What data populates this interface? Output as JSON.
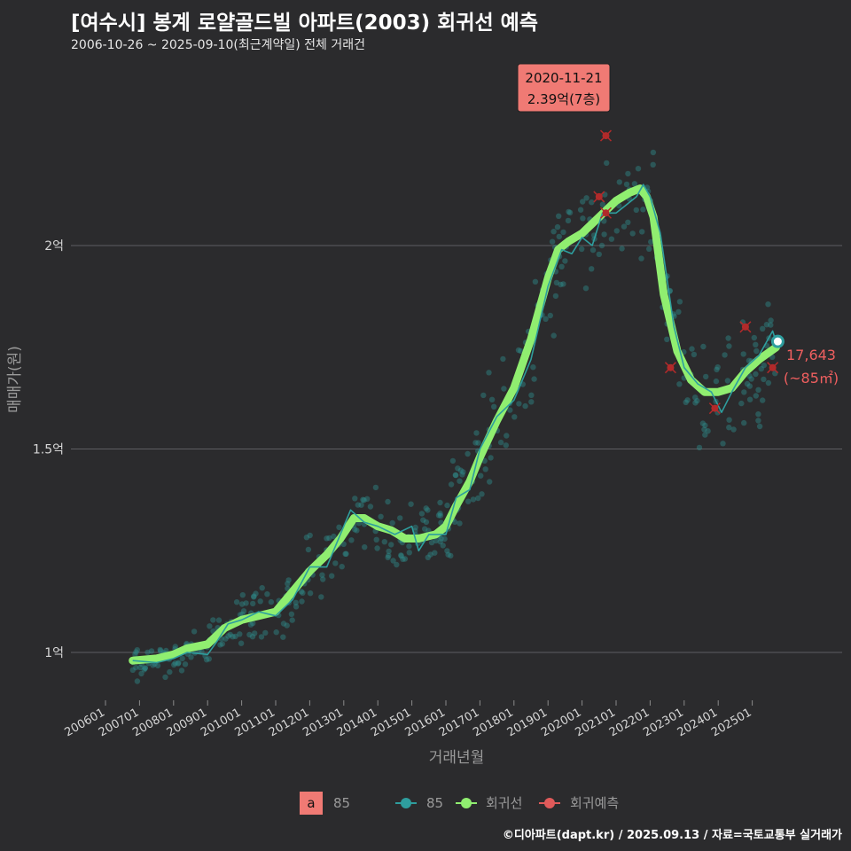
{
  "title": "[여수시] 봉계 로얄골드빌 아파트(2003) 회귀선 예측",
  "subtitle": "2006-10-26 ~ 2025-09-10(최근계약일) 전체 거래건",
  "footer": "©디아파트(dapt.kr) / 2025.09.13 / 자료=국토교통부 실거래가",
  "colors": {
    "background": "#2b2b2d",
    "scatter": "#2e8b8b",
    "trend": "#2e9e9e",
    "regression": "#90ee70",
    "predict": "#e05a5a",
    "callout_bg": "#f07a74",
    "label_red": "#f05f5f"
  },
  "chart_data": {
    "type": "scatter",
    "xlabel": "거래년월",
    "ylabel": "매매가(원)",
    "y_unit": "억",
    "ylim": [
      0.88,
      2.45
    ],
    "y_ticks": [
      {
        "value": 1.0,
        "label": "1억"
      },
      {
        "value": 1.5,
        "label": "1.5억"
      },
      {
        "value": 2.0,
        "label": "2억"
      }
    ],
    "x_range": [
      2006.0,
      2026.0
    ],
    "x_ticks": [
      "200601",
      "200701",
      "200801",
      "200901",
      "201001",
      "201101",
      "201201",
      "201301",
      "201401",
      "201501",
      "201601",
      "201701",
      "201801",
      "201901",
      "202001",
      "202101",
      "202201",
      "202301",
      "202401",
      "202501"
    ],
    "regression": {
      "name": "회귀선",
      "x": [
        2006.8,
        2007.5,
        2008.0,
        2008.4,
        2009.0,
        2009.5,
        2010.0,
        2010.5,
        2011.0,
        2011.5,
        2012.0,
        2012.5,
        2012.9,
        2013.3,
        2013.6,
        2014.0,
        2014.4,
        2014.8,
        2015.2,
        2015.7,
        2016.0,
        2016.3,
        2016.7,
        2017.0,
        2017.5,
        2018.0,
        2018.5,
        2019.0,
        2019.3,
        2019.6,
        2020.0,
        2020.5,
        2021.0,
        2021.4,
        2021.7,
        2021.9,
        2022.1,
        2022.4,
        2022.8,
        2023.2,
        2023.6,
        2024.0,
        2024.4,
        2024.8,
        2025.2,
        2025.7
      ],
      "y": [
        0.98,
        0.985,
        0.995,
        1.01,
        1.02,
        1.06,
        1.08,
        1.09,
        1.1,
        1.15,
        1.2,
        1.24,
        1.28,
        1.33,
        1.33,
        1.31,
        1.3,
        1.28,
        1.28,
        1.29,
        1.31,
        1.36,
        1.42,
        1.48,
        1.57,
        1.65,
        1.77,
        1.92,
        1.99,
        2.01,
        2.03,
        2.07,
        2.11,
        2.13,
        2.14,
        2.12,
        2.07,
        1.88,
        1.74,
        1.67,
        1.64,
        1.64,
        1.65,
        1.69,
        1.72,
        1.75
      ]
    },
    "trend_85": {
      "name": "85",
      "x": [
        2006.8,
        2007.5,
        2008.0,
        2008.4,
        2009.0,
        2009.3,
        2009.6,
        2010.0,
        2010.5,
        2011.0,
        2011.5,
        2012.0,
        2012.5,
        2012.8,
        2013.2,
        2013.6,
        2014.0,
        2014.5,
        2015.0,
        2015.2,
        2015.5,
        2016.0,
        2016.3,
        2016.7,
        2017.0,
        2017.5,
        2018.0,
        2018.5,
        2019.0,
        2019.4,
        2019.7,
        2020.0,
        2020.3,
        2020.6,
        2021.0,
        2021.3,
        2021.6,
        2021.8,
        2022.0,
        2022.3,
        2022.7,
        2023.0,
        2023.4,
        2023.8,
        2024.1,
        2024.4,
        2024.8,
        2025.2,
        2025.6,
        2025.75
      ],
      "y": [
        0.98,
        0.975,
        0.985,
        1.0,
        0.995,
        1.03,
        1.07,
        1.08,
        1.1,
        1.09,
        1.13,
        1.21,
        1.21,
        1.27,
        1.35,
        1.32,
        1.31,
        1.29,
        1.31,
        1.25,
        1.29,
        1.29,
        1.38,
        1.4,
        1.5,
        1.58,
        1.62,
        1.72,
        1.9,
        1.99,
        1.98,
        2.02,
        2.0,
        2.08,
        2.08,
        2.1,
        2.12,
        2.15,
        2.12,
        2.03,
        1.8,
        1.7,
        1.66,
        1.64,
        1.59,
        1.64,
        1.7,
        1.73,
        1.79,
        1.75
      ]
    },
    "predictions": {
      "name": "회귀예측",
      "points": [
        {
          "x": 2020.7,
          "y": 2.27
        },
        {
          "x": 2020.5,
          "y": 2.12
        },
        {
          "x": 2020.7,
          "y": 2.08
        },
        {
          "x": 2022.6,
          "y": 1.7
        },
        {
          "x": 2023.9,
          "y": 1.6
        },
        {
          "x": 2024.8,
          "y": 1.8
        },
        {
          "x": 2025.6,
          "y": 1.7
        }
      ]
    },
    "last_point": {
      "x": 2025.75,
      "y": 1.7643
    },
    "callout": {
      "date": "2020-11-21",
      "price": "2.39억(7층)",
      "x": 2020.88,
      "y": 2.39
    },
    "last_label": {
      "value": "17,643",
      "area": "(~85㎡)"
    },
    "legend": {
      "area_key": "a",
      "area_label": "85",
      "series_85": "85",
      "regression": "회귀선",
      "predict": "회귀예측"
    }
  }
}
